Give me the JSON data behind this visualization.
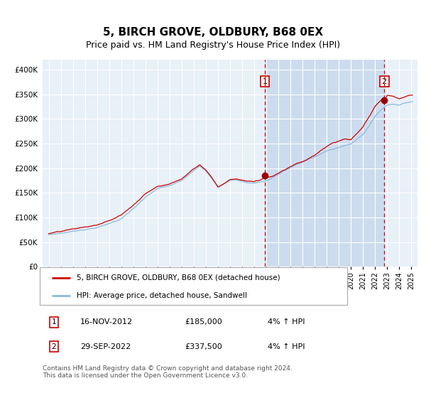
{
  "title": "5, BIRCH GROVE, OLDBURY, B68 0EX",
  "subtitle": "Price paid vs. HM Land Registry's House Price Index (HPI)",
  "title_fontsize": 11,
  "subtitle_fontsize": 9,
  "legend_label_red": "5, BIRCH GROVE, OLDBURY, B68 0EX (detached house)",
  "legend_label_blue": "HPI: Average price, detached house, Sandwell",
  "sale1_date": "16-NOV-2012",
  "sale1_price": 185000,
  "sale1_label": "1",
  "sale1_note": "4% ↑ HPI",
  "sale2_date": "29-SEP-2022",
  "sale2_price": 337500,
  "sale2_label": "2",
  "sale2_note": "4% ↑ HPI",
  "footer": "Contains HM Land Registry data © Crown copyright and database right 2024.\nThis data is licensed under the Open Government Licence v3.0.",
  "background_color": "#ffffff",
  "plot_bg_color": "#e8f0f8",
  "shade_color": "#ccdcee",
  "grid_color": "#ffffff",
  "red_line_color": "#cc0000",
  "blue_line_color": "#88bbdd",
  "marker_color": "#990000",
  "dashed_line_color": "#cc0000",
  "ylim": [
    0,
    420000
  ],
  "yticks": [
    0,
    50000,
    100000,
    150000,
    200000,
    250000,
    300000,
    350000,
    400000
  ],
  "ytick_labels": [
    "£0",
    "£50K",
    "£100K",
    "£150K",
    "£200K",
    "£250K",
    "£300K",
    "£350K",
    "£400K"
  ],
  "sale1_x": 2012.88,
  "sale2_x": 2022.75,
  "xmin": 1994.5,
  "xmax": 2025.5
}
